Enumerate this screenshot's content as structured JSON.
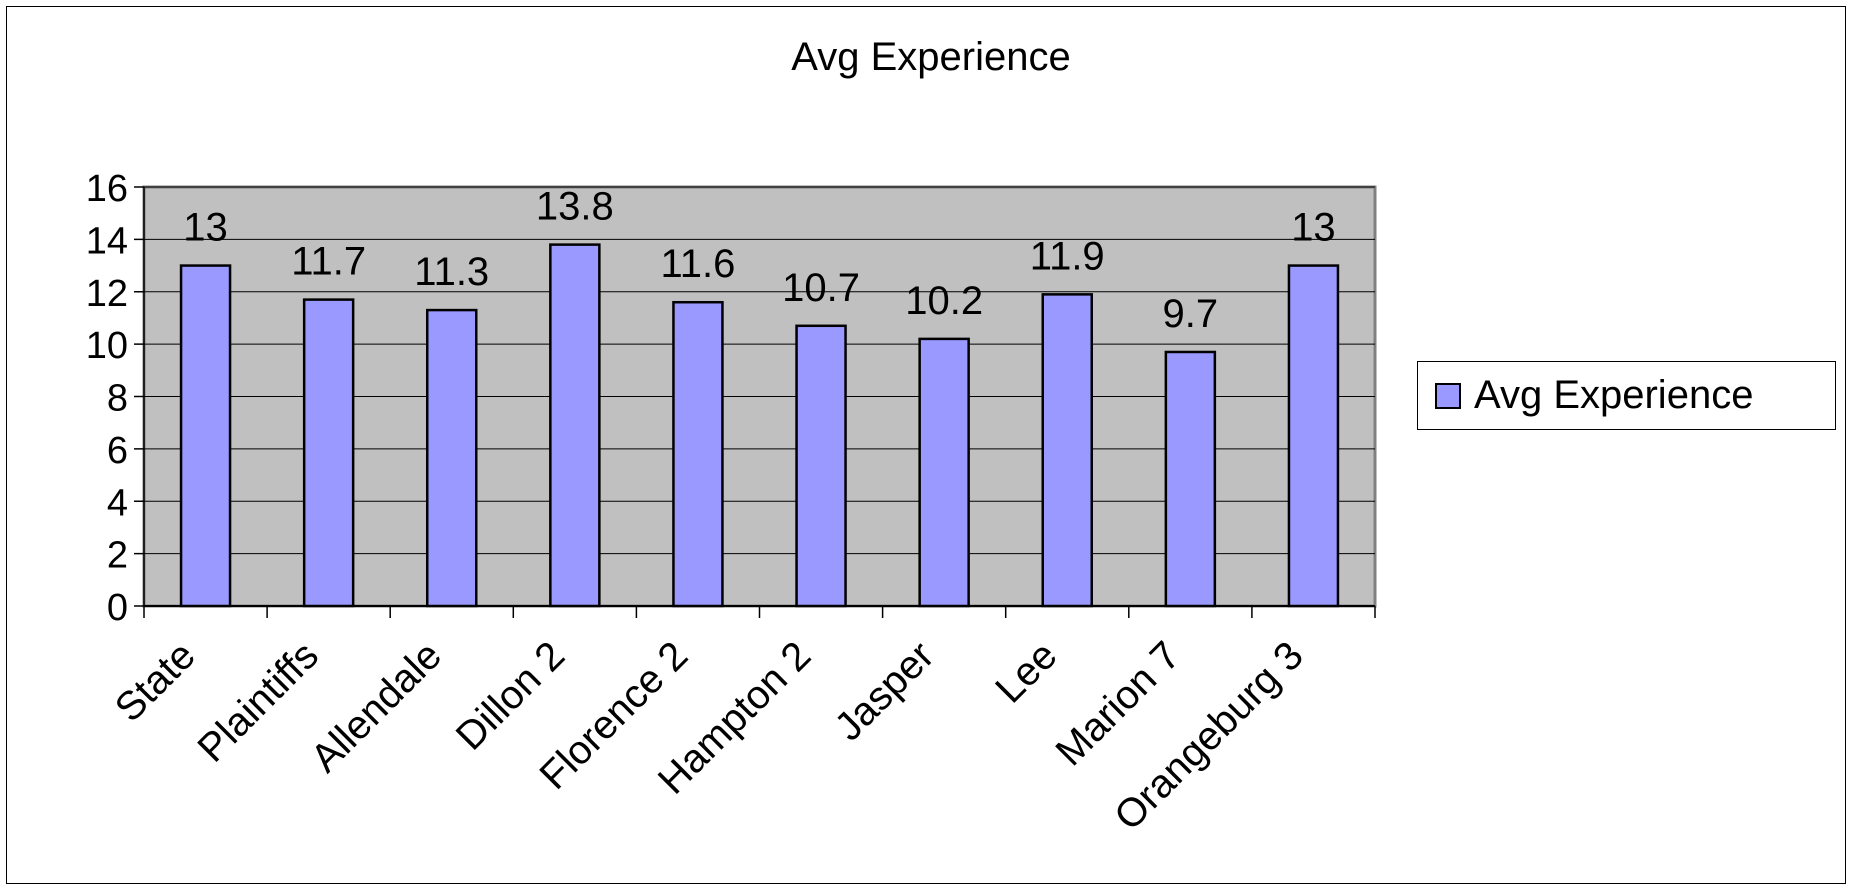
{
  "chart_data": {
    "type": "bar",
    "title": "Avg Experience",
    "xlabel": "",
    "ylabel": "",
    "categories": [
      "State",
      "Plaintiffs",
      "Allendale",
      "Dillon 2",
      "Florence 2",
      "Hampton 2",
      "Jasper",
      "Lee",
      "Marion 7",
      "Orangeburg 3"
    ],
    "series": [
      {
        "name": "Avg Experience",
        "values": [
          13,
          11.7,
          11.3,
          13.8,
          11.6,
          10.7,
          10.2,
          11.9,
          9.7,
          13
        ]
      }
    ],
    "data_labels": [
      "13",
      "11.7",
      "11.3",
      "13.8",
      "11.6",
      "10.7",
      "10.2",
      "11.9",
      "9.7",
      "13"
    ],
    "ylim": [
      0,
      16
    ],
    "yticks": [
      0,
      2,
      4,
      6,
      8,
      10,
      12,
      14,
      16
    ],
    "grid": true,
    "legend": "right",
    "colors": {
      "bar": "#9999ff",
      "plot_area": "#c0c0c0",
      "gridline": "#000000"
    }
  }
}
